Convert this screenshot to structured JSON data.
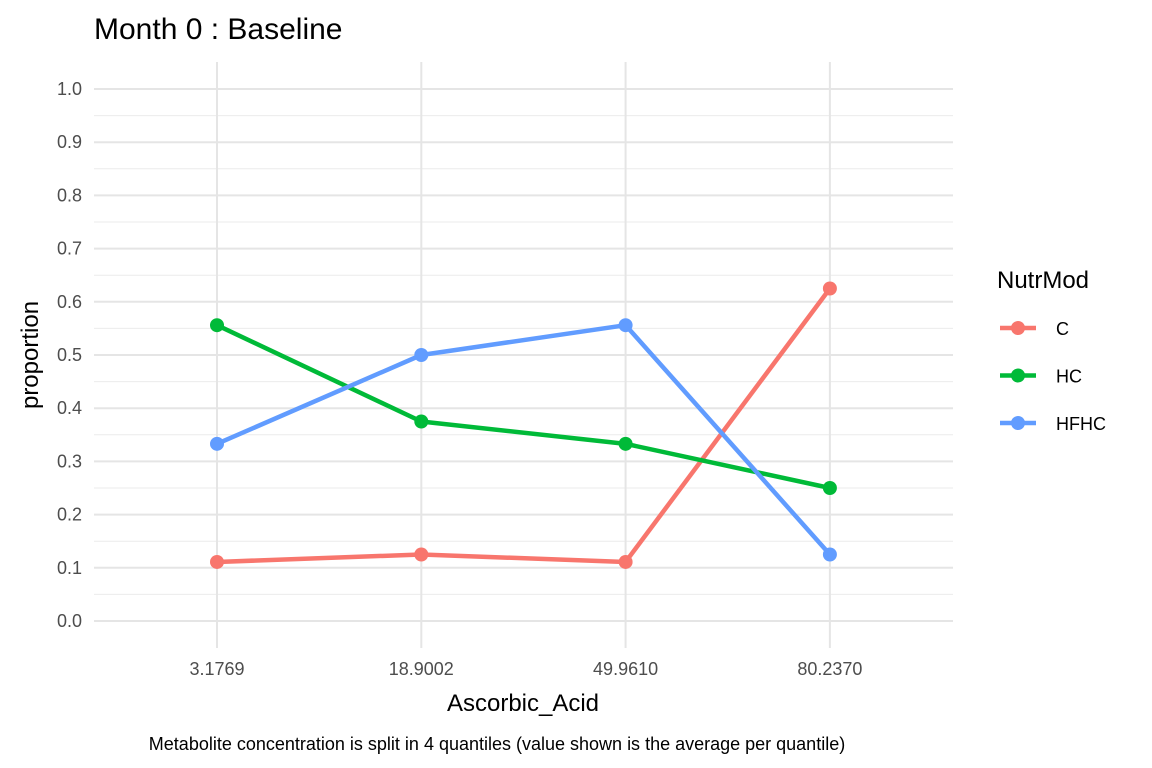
{
  "chart_data": {
    "type": "line",
    "title": "Month 0 : Baseline",
    "xlabel": "Ascorbic_Acid",
    "ylabel": "proportion",
    "caption": "Metabolite concentration is split in 4 quantiles (value shown is the average per quantile)",
    "categories": [
      "3.1769",
      "18.9002",
      "49.9610",
      "80.2370"
    ],
    "ylim": [
      0.0,
      1.0
    ],
    "yticks": [
      "0.0",
      "0.1",
      "0.2",
      "0.3",
      "0.4",
      "0.5",
      "0.6",
      "0.7",
      "0.8",
      "0.9",
      "1.0"
    ],
    "grid": true,
    "legend": {
      "title": "NutrMod",
      "placement": "right"
    },
    "series": [
      {
        "name": "C",
        "color": "#F8766D",
        "values": [
          0.111,
          0.125,
          0.111,
          0.625
        ]
      },
      {
        "name": "HC",
        "color": "#00BA38",
        "values": [
          0.556,
          0.375,
          0.333,
          0.25
        ]
      },
      {
        "name": "HFHC",
        "color": "#619CFF",
        "values": [
          0.333,
          0.5,
          0.556,
          0.125
        ]
      }
    ]
  }
}
